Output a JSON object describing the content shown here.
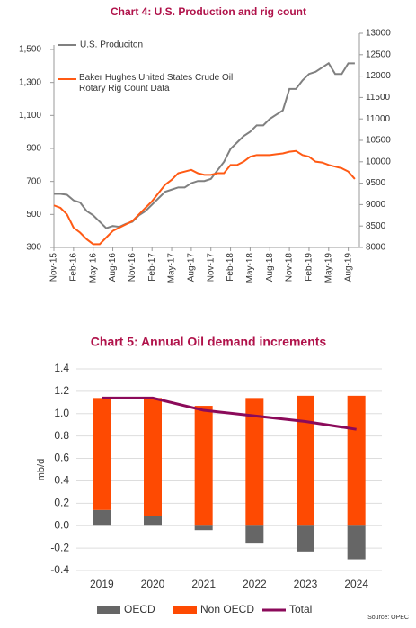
{
  "chart_data": [
    {
      "type": "line",
      "title": "Chart 4: U.S. Production and rig count",
      "categories": [
        "Nov-15",
        null,
        null,
        "Feb-16",
        null,
        null,
        "May-16",
        null,
        null,
        "Aug-16",
        null,
        null,
        "Nov-16",
        null,
        null,
        "Feb-17",
        null,
        null,
        "May-17",
        null,
        null,
        "Aug-17",
        null,
        null,
        "Nov-17",
        null,
        null,
        "Feb-18",
        null,
        null,
        "May-18",
        null,
        null,
        "Aug-18",
        null,
        null,
        "Nov-18",
        null,
        null,
        "Feb-19",
        null,
        null,
        "May-19",
        null,
        null,
        "Aug-19",
        null
      ],
      "series": [
        {
          "name": "U.S. Produciton",
          "color": "#808080",
          "axis": "y2",
          "values": [
            9250,
            9250,
            9230,
            9100,
            9050,
            8850,
            8750,
            8600,
            8450,
            8500,
            8480,
            8550,
            8600,
            8750,
            8850,
            9000,
            9150,
            9300,
            9350,
            9400,
            9400,
            9500,
            9550,
            9550,
            9600,
            9800,
            10000,
            10300,
            10450,
            10600,
            10700,
            10850,
            10850,
            11000,
            11100,
            11200,
            11700,
            11700,
            11900,
            12050,
            12100,
            12200,
            12300,
            12050,
            12050,
            12300,
            12300
          ]
        },
        {
          "name": "Baker Hughes United States Crude Oil Rotary Rig Count Data",
          "color": "#ff5a14",
          "values": [
            555,
            540,
            500,
            420,
            390,
            350,
            320,
            320,
            360,
            400,
            420,
            440,
            460,
            500,
            540,
            580,
            630,
            680,
            710,
            750,
            760,
            770,
            750,
            740,
            740,
            750,
            750,
            800,
            800,
            820,
            850,
            860,
            860,
            860,
            865,
            870,
            880,
            885,
            860,
            850,
            820,
            815,
            800,
            790,
            780,
            760,
            715
          ]
        }
      ],
      "ylim": [
        300,
        1500
      ],
      "yticks": [
        300,
        500,
        700,
        900,
        {
          "value": 1100,
          "label": "1,100"
        },
        {
          "value": 1300,
          "label": "1,300"
        },
        {
          "value": 1500,
          "label": "1,500"
        }
      ],
      "y2lim": [
        8000,
        13000
      ],
      "y2ticks": [
        8000,
        8500,
        9000,
        9500,
        10000,
        10500,
        11000,
        11500,
        12000,
        12500,
        13000
      ],
      "grid": false
    },
    {
      "type": "bar",
      "title": "Chart 5: Annual Oil demand increments",
      "y_label": "mb/d",
      "source": "Source: OPEC",
      "categories": [
        "2019",
        "2020",
        "2021",
        "2022",
        "2023",
        "2024"
      ],
      "series": [
        {
          "name": "OECD",
          "color": "#666666",
          "values": [
            0.14,
            0.09,
            -0.04,
            -0.16,
            -0.23,
            -0.3
          ]
        },
        {
          "name": "Non OECD",
          "color": "#fe4a02",
          "values": [
            1.0,
            1.05,
            1.07,
            1.14,
            1.16,
            1.16
          ]
        },
        {
          "name": "Total",
          "color": "#8b0a5a",
          "type": "line",
          "values": [
            1.14,
            1.14,
            1.03,
            0.98,
            0.93,
            0.86
          ]
        }
      ],
      "ylim": [
        -0.4,
        1.4
      ],
      "yticks": [
        -0.4,
        -0.2,
        {
          "value": 0,
          "label": "0.0"
        },
        0.2,
        0.4,
        0.6,
        0.8,
        {
          "value": 1,
          "label": "1.0"
        },
        1.2,
        1.4
      ],
      "grid": true
    }
  ]
}
